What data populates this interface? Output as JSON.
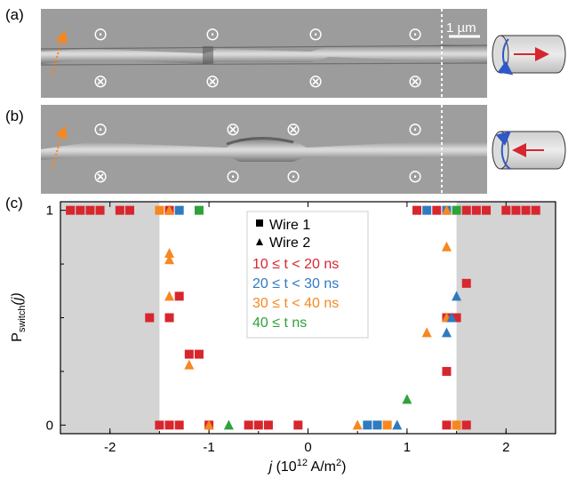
{
  "panels": {
    "a_label": "(a)",
    "b_label": "(b)",
    "c_label": "(c)",
    "scale_bar": "1 µm",
    "symbols": {
      "out_of_page": "⊙",
      "into_page": "⊗"
    },
    "a_top_symbols": [
      "⊙",
      "⊙",
      "⊙",
      "⊙"
    ],
    "a_bottom_symbols": [
      "⊗",
      "⊗",
      "⊗",
      "⊗"
    ],
    "b_top_symbols": [
      "⊙",
      "⊗",
      "⊗",
      "⊙"
    ],
    "b_bottom_symbols": [
      "⊗",
      "⊙",
      "⊙",
      "⊙"
    ],
    "icons": [
      "cylinder-right-arrow-icon",
      "cylinder-left-arrow-icon"
    ]
  },
  "colors": {
    "shade": "#d4d4d4",
    "red": "#d7262e",
    "blue": "#2f7bbf",
    "orange": "#f7871f",
    "green": "#2ea33a",
    "image_bg": "#9c9c9c"
  },
  "chart_data": {
    "type": "scatter",
    "xlabel_prefix": "j",
    "xlabel_rest": " (10",
    "xlabel_exp": "12",
    "xlabel_unit": " A/m",
    "xlabel_sq": "2",
    "xlabel_close": ")",
    "ylabel_main": "P",
    "ylabel_sub": "switch",
    "ylabel_arg": "(j)",
    "xlim": [
      -2.5,
      2.5
    ],
    "ylim": [
      -0.04,
      1.04
    ],
    "xticks": [
      -2,
      -1,
      0,
      1,
      2
    ],
    "xtick_labels": [
      "-2",
      "-1",
      "0",
      "1",
      "2"
    ],
    "yticks": [
      0,
      1
    ],
    "ytick_labels": [
      "0",
      "1"
    ],
    "shaded_regions": [
      [
        -2.5,
        -1.5
      ],
      [
        1.5,
        2.5
      ]
    ],
    "legend": {
      "marker_entries": [
        {
          "marker": "square",
          "label": "Wire 1"
        },
        {
          "marker": "triangle",
          "label": "Wire 2"
        }
      ],
      "color_entries": [
        {
          "color": "red",
          "label": "10 ≤ t < 20 ns"
        },
        {
          "color": "blue",
          "label": "20 ≤ t < 30 ns"
        },
        {
          "color": "orange",
          "label": "30 ≤ t < 40 ns"
        },
        {
          "color": "green",
          "label": "40 ≤ t ns"
        }
      ]
    },
    "series": [
      {
        "marker": "square",
        "color": "red",
        "points": [
          [
            -2.4,
            1
          ],
          [
            -2.3,
            1
          ],
          [
            -2.2,
            1
          ],
          [
            -2.1,
            1
          ],
          [
            -1.9,
            1
          ],
          [
            -1.8,
            1
          ],
          [
            -1.4,
            1
          ],
          [
            -1.4,
            0.5
          ],
          [
            -1.6,
            0.5
          ],
          [
            -1.3,
            0.6
          ],
          [
            -1.2,
            0.33
          ],
          [
            -1.1,
            0.33
          ],
          [
            -1.5,
            0
          ],
          [
            -1.4,
            0
          ],
          [
            -1.3,
            0
          ],
          [
            -1.0,
            0
          ],
          [
            -0.6,
            0
          ],
          [
            -0.5,
            0
          ],
          [
            -0.4,
            0
          ],
          [
            -0.1,
            0
          ],
          [
            1.1,
            1
          ],
          [
            1.3,
            1
          ],
          [
            1.6,
            1
          ],
          [
            1.7,
            1
          ],
          [
            1.8,
            1
          ],
          [
            2.0,
            1
          ],
          [
            2.1,
            1
          ],
          [
            2.2,
            1
          ],
          [
            2.3,
            1
          ],
          [
            1.6,
            0.66
          ],
          [
            1.4,
            0.5
          ],
          [
            1.5,
            0.5
          ],
          [
            1.4,
            0.25
          ],
          [
            1.4,
            0.0
          ],
          [
            1.6,
            0
          ]
        ]
      },
      {
        "marker": "square",
        "color": "blue",
        "points": [
          [
            -1.3,
            1
          ],
          [
            1.2,
            1
          ],
          [
            0.6,
            0
          ],
          [
            0.7,
            0
          ],
          [
            1.4,
            1
          ]
        ]
      },
      {
        "marker": "square",
        "color": "orange",
        "points": [
          [
            -1.5,
            1
          ],
          [
            1.5,
            0
          ],
          [
            0.8,
            0
          ]
        ]
      },
      {
        "marker": "square",
        "color": "green",
        "points": [
          [
            -1.1,
            1
          ],
          [
            1.5,
            1
          ]
        ]
      },
      {
        "marker": "triangle",
        "color": "orange",
        "points": [
          [
            -1.4,
            1
          ],
          [
            -1.4,
            0.8
          ],
          [
            -1.4,
            0.77
          ],
          [
            -1.4,
            0.6
          ],
          [
            -1.2,
            0.28
          ],
          [
            -1.0,
            0
          ],
          [
            0.5,
            0
          ],
          [
            1.2,
            0.43
          ],
          [
            1.4,
            0.83
          ],
          [
            1.4,
            0.5
          ],
          [
            1.4,
            1
          ],
          [
            1.5,
            0
          ]
        ]
      },
      {
        "marker": "triangle",
        "color": "blue",
        "points": [
          [
            1.5,
            0.6
          ],
          [
            1.4,
            0.43
          ],
          [
            0.9,
            0
          ],
          [
            1.45,
            0.5
          ]
        ]
      },
      {
        "marker": "triangle",
        "color": "green",
        "points": [
          [
            -0.8,
            0
          ],
          [
            1.0,
            0.12
          ]
        ]
      }
    ]
  }
}
